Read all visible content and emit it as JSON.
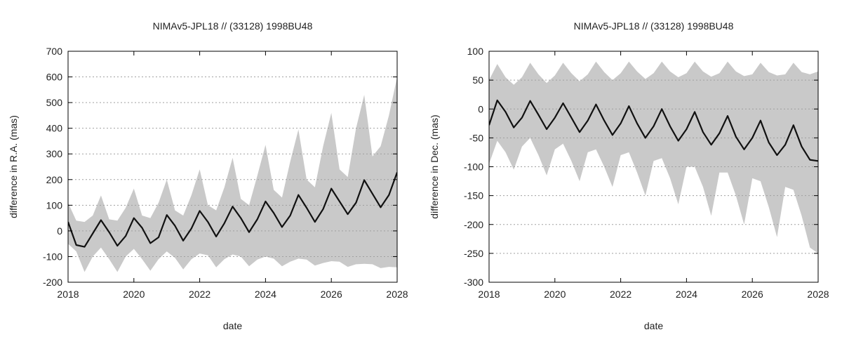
{
  "chart_data": [
    {
      "type": "line",
      "title": "NIMAv5-JPL18 // (33128) 1998BU48",
      "xlabel": "date",
      "ylabel": "difference in R.A. (mas)",
      "xlim": [
        2018,
        2028
      ],
      "ylim": [
        -200,
        700
      ],
      "xticks": [
        2018,
        2020,
        2022,
        2024,
        2026,
        2028
      ],
      "yticks": [
        -200,
        -100,
        0,
        100,
        200,
        300,
        400,
        500,
        600,
        700
      ],
      "grid": "horizontal-dotted",
      "band_color": "#c9c9c9",
      "line_color": "#111111",
      "series": [
        {
          "role": "mean",
          "x": [
            2018.0,
            2018.25,
            2018.5,
            2018.75,
            2019.0,
            2019.25,
            2019.5,
            2019.75,
            2020.0,
            2020.25,
            2020.5,
            2020.75,
            2021.0,
            2021.25,
            2021.5,
            2021.75,
            2022.0,
            2022.25,
            2022.5,
            2022.75,
            2023.0,
            2023.25,
            2023.5,
            2023.75,
            2024.0,
            2024.25,
            2024.5,
            2024.75,
            2025.0,
            2025.25,
            2025.5,
            2025.75,
            2026.0,
            2026.25,
            2026.5,
            2026.75,
            2027.0,
            2027.25,
            2027.5,
            2027.75,
            2028.0
          ],
          "y": [
            35,
            -55,
            -62,
            -10,
            42,
            -5,
            -58,
            -20,
            50,
            12,
            -48,
            -25,
            62,
            20,
            -38,
            10,
            78,
            35,
            -22,
            30,
            95,
            50,
            -5,
            45,
            115,
            70,
            15,
            60,
            140,
            90,
            35,
            85,
            165,
            115,
            65,
            110,
            198,
            145,
            92,
            140,
            228
          ]
        },
        {
          "role": "upper",
          "x": [
            2018.0,
            2018.25,
            2018.5,
            2018.75,
            2019.0,
            2019.25,
            2019.5,
            2019.75,
            2020.0,
            2020.25,
            2020.5,
            2020.75,
            2021.0,
            2021.25,
            2021.5,
            2021.75,
            2022.0,
            2022.25,
            2022.5,
            2022.75,
            2023.0,
            2023.25,
            2023.5,
            2023.75,
            2024.0,
            2024.25,
            2024.5,
            2024.75,
            2025.0,
            2025.25,
            2025.5,
            2025.75,
            2026.0,
            2026.25,
            2026.5,
            2026.75,
            2027.0,
            2027.25,
            2027.5,
            2027.75,
            2028.0
          ],
          "y": [
            110,
            40,
            35,
            60,
            138,
            45,
            40,
            90,
            165,
            60,
            50,
            110,
            200,
            80,
            60,
            140,
            240,
            100,
            80,
            170,
            285,
            125,
            100,
            215,
            335,
            160,
            130,
            270,
            395,
            200,
            170,
            330,
            460,
            240,
            210,
            400,
            530,
            290,
            330,
            450,
            600
          ]
        },
        {
          "role": "lower",
          "x": [
            2018.0,
            2018.25,
            2018.5,
            2018.75,
            2019.0,
            2019.25,
            2019.5,
            2019.75,
            2020.0,
            2020.25,
            2020.5,
            2020.75,
            2021.0,
            2021.25,
            2021.5,
            2021.75,
            2022.0,
            2022.25,
            2022.5,
            2022.75,
            2023.0,
            2023.25,
            2023.5,
            2023.75,
            2024.0,
            2024.25,
            2024.5,
            2024.75,
            2025.0,
            2025.25,
            2025.5,
            2025.75,
            2026.0,
            2026.25,
            2026.5,
            2026.75,
            2027.0,
            2027.25,
            2027.5,
            2027.75,
            2028.0
          ],
          "y": [
            -50,
            -80,
            -160,
            -100,
            -65,
            -110,
            -160,
            -100,
            -70,
            -110,
            -155,
            -110,
            -80,
            -105,
            -150,
            -110,
            -88,
            -95,
            -142,
            -110,
            -92,
            -100,
            -138,
            -112,
            -100,
            -108,
            -138,
            -120,
            -108,
            -112,
            -135,
            -125,
            -118,
            -120,
            -140,
            -130,
            -128,
            -130,
            -145,
            -140,
            -142
          ]
        }
      ]
    },
    {
      "type": "line",
      "title": "NIMAv5-JPL18 // (33128) 1998BU48",
      "xlabel": "date",
      "ylabel": "difference in Dec. (mas)",
      "xlim": [
        2018,
        2028
      ],
      "ylim": [
        -300,
        100
      ],
      "xticks": [
        2018,
        2020,
        2022,
        2024,
        2026,
        2028
      ],
      "yticks": [
        -300,
        -250,
        -200,
        -150,
        -100,
        -50,
        0,
        50,
        100
      ],
      "grid": "horizontal-dotted",
      "band_color": "#c9c9c9",
      "line_color": "#111111",
      "series": [
        {
          "role": "mean",
          "x": [
            2018.0,
            2018.25,
            2018.5,
            2018.75,
            2019.0,
            2019.25,
            2019.5,
            2019.75,
            2020.0,
            2020.25,
            2020.5,
            2020.75,
            2021.0,
            2021.25,
            2021.5,
            2021.75,
            2022.0,
            2022.25,
            2022.5,
            2022.75,
            2023.0,
            2023.25,
            2023.5,
            2023.75,
            2024.0,
            2024.25,
            2024.5,
            2024.75,
            2025.0,
            2025.25,
            2025.5,
            2025.75,
            2026.0,
            2026.25,
            2026.5,
            2026.75,
            2027.0,
            2027.25,
            2027.5,
            2027.75,
            2028.0
          ],
          "y": [
            -28,
            15,
            -5,
            -32,
            -15,
            14,
            -10,
            -35,
            -15,
            10,
            -15,
            -40,
            -20,
            8,
            -20,
            -45,
            -25,
            5,
            -25,
            -50,
            -30,
            0,
            -30,
            -55,
            -35,
            -5,
            -40,
            -62,
            -42,
            -12,
            -48,
            -70,
            -50,
            -20,
            -58,
            -80,
            -62,
            -28,
            -65,
            -88,
            -90
          ]
        },
        {
          "role": "upper",
          "x": [
            2018.0,
            2018.25,
            2018.5,
            2018.75,
            2019.0,
            2019.25,
            2019.5,
            2019.75,
            2020.0,
            2020.25,
            2020.5,
            2020.75,
            2021.0,
            2021.25,
            2021.5,
            2021.75,
            2022.0,
            2022.25,
            2022.5,
            2022.75,
            2023.0,
            2023.25,
            2023.5,
            2023.75,
            2024.0,
            2024.25,
            2024.5,
            2024.75,
            2025.0,
            2025.25,
            2025.5,
            2025.75,
            2026.0,
            2026.25,
            2026.5,
            2026.75,
            2027.0,
            2027.25,
            2027.5,
            2027.75,
            2028.0
          ],
          "y": [
            50,
            78,
            55,
            42,
            55,
            80,
            60,
            45,
            58,
            80,
            62,
            48,
            60,
            82,
            64,
            50,
            62,
            82,
            65,
            52,
            62,
            82,
            65,
            55,
            62,
            82,
            65,
            56,
            62,
            82,
            65,
            57,
            60,
            80,
            64,
            58,
            60,
            80,
            64,
            60,
            65
          ]
        },
        {
          "role": "lower",
          "x": [
            2018.0,
            2018.25,
            2018.5,
            2018.75,
            2019.0,
            2019.25,
            2019.5,
            2019.75,
            2020.0,
            2020.25,
            2020.5,
            2020.75,
            2021.0,
            2021.25,
            2021.5,
            2021.75,
            2022.0,
            2022.25,
            2022.5,
            2022.75,
            2023.0,
            2023.25,
            2023.5,
            2023.75,
            2024.0,
            2024.25,
            2024.5,
            2024.75,
            2025.0,
            2025.25,
            2025.5,
            2025.75,
            2026.0,
            2026.25,
            2026.5,
            2026.75,
            2027.0,
            2027.25,
            2027.5,
            2027.75,
            2028.0
          ],
          "y": [
            -95,
            -55,
            -75,
            -105,
            -65,
            -50,
            -80,
            -115,
            -70,
            -60,
            -90,
            -125,
            -75,
            -70,
            -100,
            -135,
            -80,
            -75,
            -110,
            -150,
            -90,
            -85,
            -120,
            -165,
            -100,
            -100,
            -135,
            -185,
            -110,
            -110,
            -150,
            -200,
            -120,
            -125,
            -170,
            -222,
            -135,
            -140,
            -185,
            -240,
            -250
          ]
        }
      ]
    }
  ]
}
